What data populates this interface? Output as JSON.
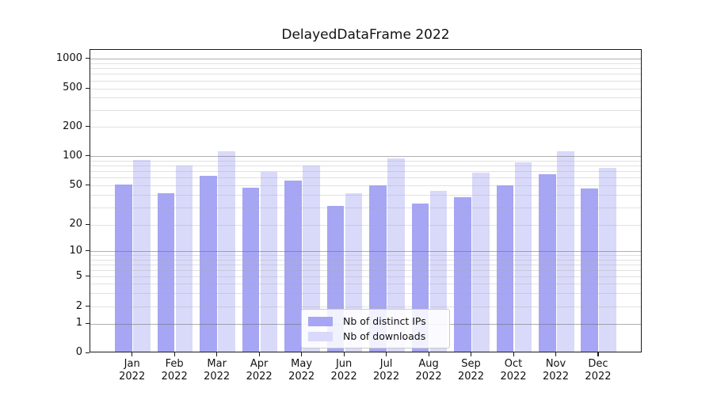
{
  "title": "DelayedDataFrame 2022",
  "chart_data": {
    "type": "bar",
    "title": "DelayedDataFrame 2022",
    "categories": [
      "Jan",
      "Feb",
      "Mar",
      "Apr",
      "May",
      "Jun",
      "Jul",
      "Aug",
      "Sep",
      "Oct",
      "Nov",
      "Dec"
    ],
    "category_second_line": "2022",
    "series": [
      {
        "name": "Nb of distinct IPs",
        "color": "#a6a6f4",
        "values": [
          50,
          41,
          61,
          46,
          55,
          30,
          49,
          32,
          37,
          49,
          64,
          45
        ]
      },
      {
        "name": "Nb of downloads",
        "color": "#d9d9fa",
        "values": [
          88,
          78,
          108,
          67,
          78,
          41,
          92,
          43,
          66,
          84,
          108,
          73
        ]
      }
    ],
    "xlabel": "",
    "ylabel": "",
    "yscale": "symlog",
    "ylim": [
      0,
      1000
    ],
    "ytick_labels": [
      0,
      1,
      2,
      5,
      10,
      20,
      50,
      100,
      200,
      500,
      1000
    ],
    "major_gridline_values": [
      1,
      10,
      100,
      1000
    ],
    "grid": true,
    "legend_position": "lower center"
  }
}
